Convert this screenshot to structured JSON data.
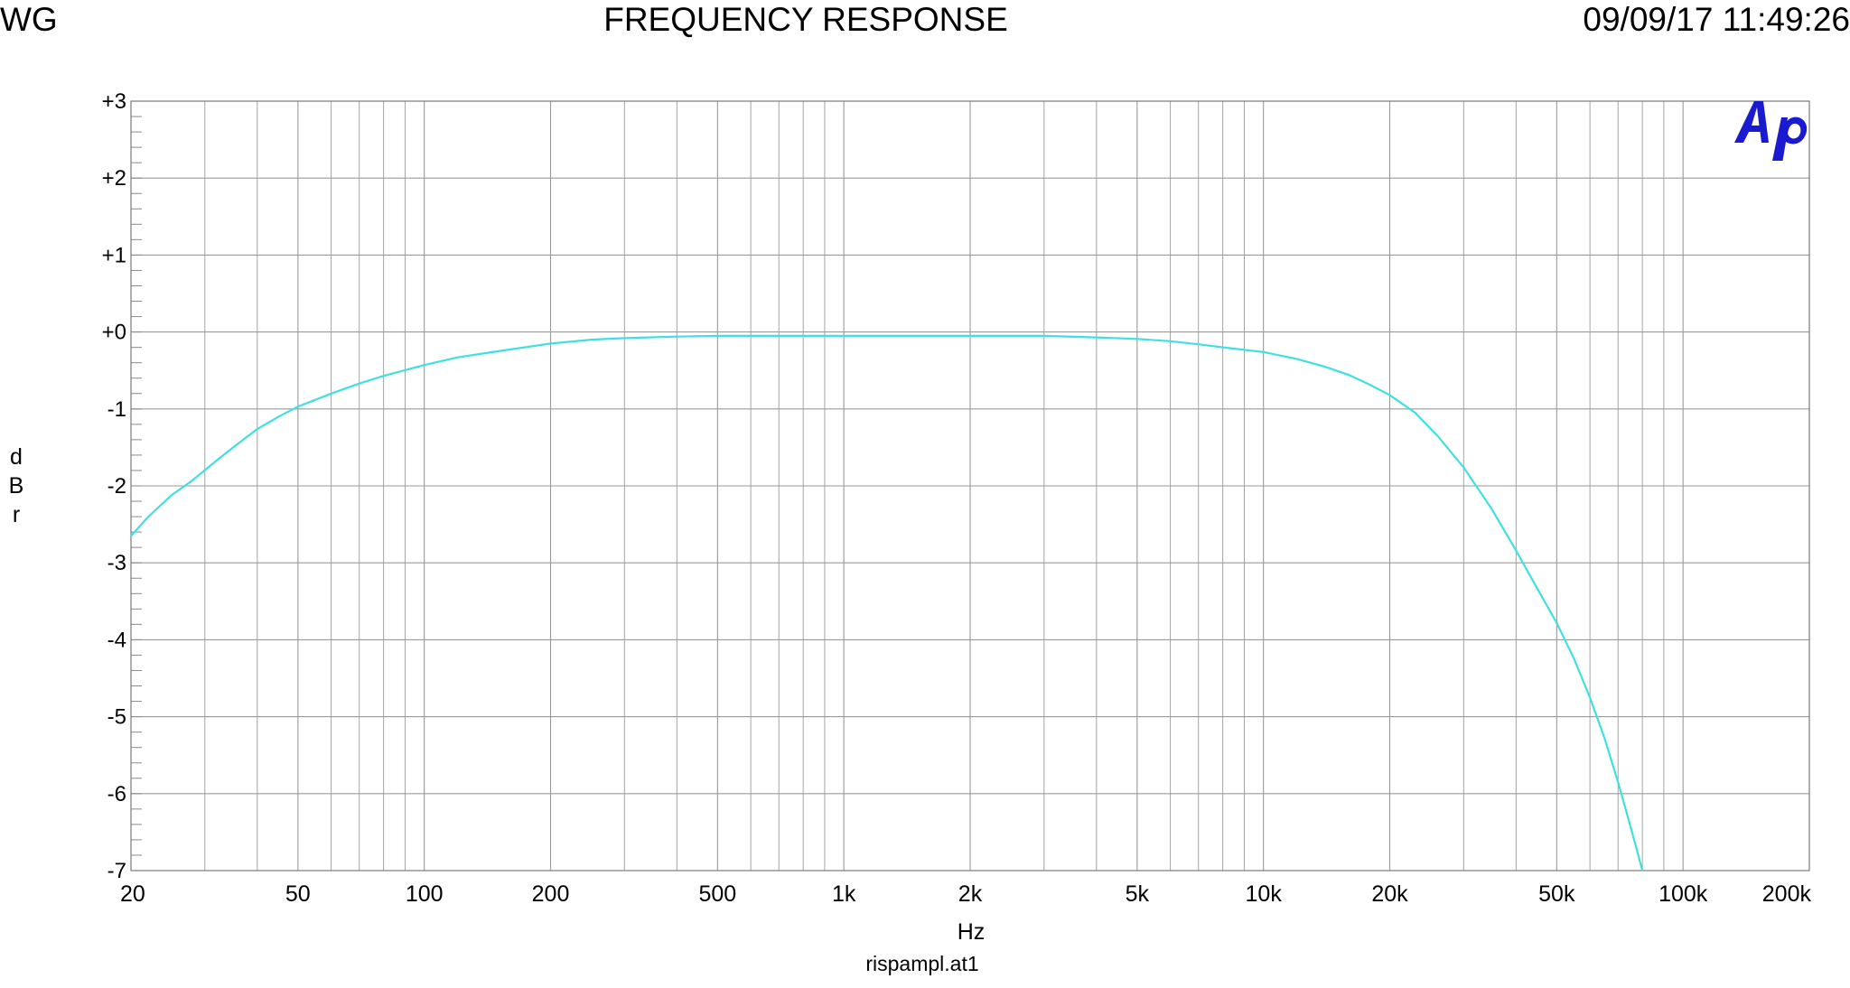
{
  "header": {
    "left": "WG",
    "title": "FREQUENCY RESPONSE",
    "datetime": "09/09/17 11:49:26"
  },
  "logo_text": "Ap",
  "colors": {
    "trace": "#40e0e0",
    "grid": "#9a9a9a",
    "logo": "#1a1ad0"
  },
  "chart_data": {
    "type": "line",
    "title": "FREQUENCY RESPONSE",
    "xlabel": "Hz",
    "ylabel_letters": [
      "d",
      "B",
      "r"
    ],
    "filename": "rispampl.at1",
    "x_scale": "log",
    "xlim": [
      20,
      200000
    ],
    "ylim": [
      -7,
      3
    ],
    "grid": true,
    "x_ticks": [
      {
        "value": 20,
        "label": "20"
      },
      {
        "value": 50,
        "label": "50"
      },
      {
        "value": 100,
        "label": "100"
      },
      {
        "value": 200,
        "label": "200"
      },
      {
        "value": 500,
        "label": "500"
      },
      {
        "value": 1000,
        "label": "1k"
      },
      {
        "value": 2000,
        "label": "2k"
      },
      {
        "value": 5000,
        "label": "5k"
      },
      {
        "value": 10000,
        "label": "10k"
      },
      {
        "value": 20000,
        "label": "20k"
      },
      {
        "value": 50000,
        "label": "50k"
      },
      {
        "value": 100000,
        "label": "100k"
      },
      {
        "value": 200000,
        "label": "200k"
      }
    ],
    "y_ticks": [
      {
        "value": 3,
        "label": "+3"
      },
      {
        "value": 2,
        "label": "+2"
      },
      {
        "value": 1,
        "label": "+1"
      },
      {
        "value": 0,
        "label": "+0"
      },
      {
        "value": -1,
        "label": "-1"
      },
      {
        "value": -2,
        "label": "-2"
      },
      {
        "value": -3,
        "label": "-3"
      },
      {
        "value": -4,
        "label": "-4"
      },
      {
        "value": -5,
        "label": "-5"
      },
      {
        "value": -6,
        "label": "-6"
      },
      {
        "value": -7,
        "label": "-7"
      }
    ],
    "series": [
      {
        "x": [
          20,
          22,
          25,
          28,
          32,
          36,
          40,
          45,
          50,
          60,
          70,
          80,
          100,
          120,
          150,
          200,
          250,
          300,
          400,
          500,
          700,
          1000,
          2000,
          3000,
          4000,
          5000,
          6000,
          7000,
          8000,
          10000,
          12000,
          14000,
          16000,
          18000,
          20000,
          23000,
          26000,
          30000,
          35000,
          40000,
          45000,
          50000,
          55000,
          60000,
          65000,
          70000,
          75000,
          80000
        ],
        "y": [
          -2.65,
          -2.4,
          -2.12,
          -1.93,
          -1.67,
          -1.45,
          -1.26,
          -1.1,
          -0.97,
          -0.8,
          -0.67,
          -0.57,
          -0.43,
          -0.33,
          -0.25,
          -0.15,
          -0.1,
          -0.08,
          -0.06,
          -0.05,
          -0.05,
          -0.05,
          -0.05,
          -0.05,
          -0.07,
          -0.09,
          -0.12,
          -0.16,
          -0.2,
          -0.26,
          -0.35,
          -0.45,
          -0.56,
          -0.69,
          -0.82,
          -1.05,
          -1.35,
          -1.76,
          -2.3,
          -2.84,
          -3.34,
          -3.78,
          -4.25,
          -4.75,
          -5.28,
          -5.85,
          -6.43,
          -7.0
        ]
      }
    ]
  }
}
